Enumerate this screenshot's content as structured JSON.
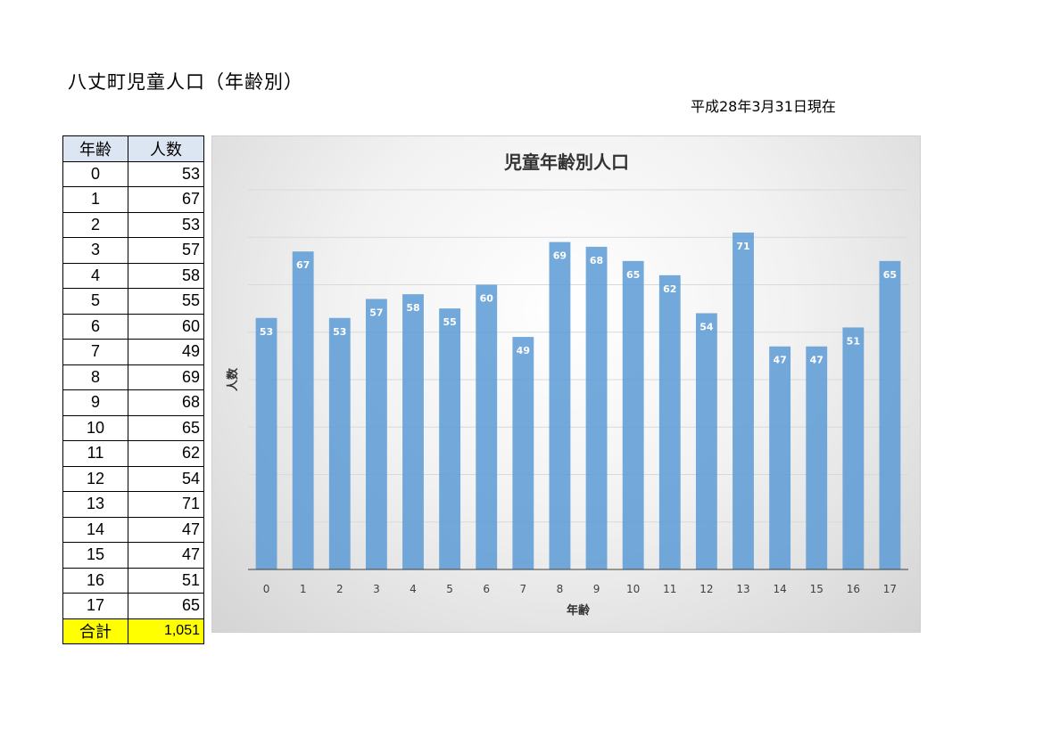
{
  "header": {
    "title": "八丈町児童人口（年齢別）",
    "as_of": "平成28年3月31日現在"
  },
  "table": {
    "headers": [
      "年齢",
      "人数"
    ],
    "rows": [
      {
        "age": "0",
        "count": "53"
      },
      {
        "age": "1",
        "count": "67"
      },
      {
        "age": "2",
        "count": "53"
      },
      {
        "age": "3",
        "count": "57"
      },
      {
        "age": "4",
        "count": "58"
      },
      {
        "age": "5",
        "count": "55"
      },
      {
        "age": "6",
        "count": "60"
      },
      {
        "age": "7",
        "count": "49"
      },
      {
        "age": "8",
        "count": "69"
      },
      {
        "age": "9",
        "count": "68"
      },
      {
        "age": "10",
        "count": "65"
      },
      {
        "age": "11",
        "count": "62"
      },
      {
        "age": "12",
        "count": "54"
      },
      {
        "age": "13",
        "count": "71"
      },
      {
        "age": "14",
        "count": "47"
      },
      {
        "age": "15",
        "count": "47"
      },
      {
        "age": "16",
        "count": "51"
      },
      {
        "age": "17",
        "count": "65"
      }
    ],
    "total_label": "合計",
    "total_value": "1,051",
    "total_bg": "#ffff00",
    "header_bg": "#dce6f2"
  },
  "chart_data": {
    "type": "bar",
    "title": "児童年齢別人口",
    "xlabel": "年齢",
    "ylabel": "人数",
    "categories": [
      "0",
      "1",
      "2",
      "3",
      "4",
      "5",
      "6",
      "7",
      "8",
      "9",
      "10",
      "11",
      "12",
      "13",
      "14",
      "15",
      "16",
      "17"
    ],
    "values": [
      53,
      67,
      53,
      57,
      58,
      55,
      60,
      49,
      69,
      68,
      65,
      62,
      54,
      71,
      47,
      47,
      51,
      65
    ],
    "ylim": [
      0,
      80
    ],
    "grid": true,
    "legend": "none",
    "bar_color": "#5b9bd5",
    "data_labels": true
  }
}
